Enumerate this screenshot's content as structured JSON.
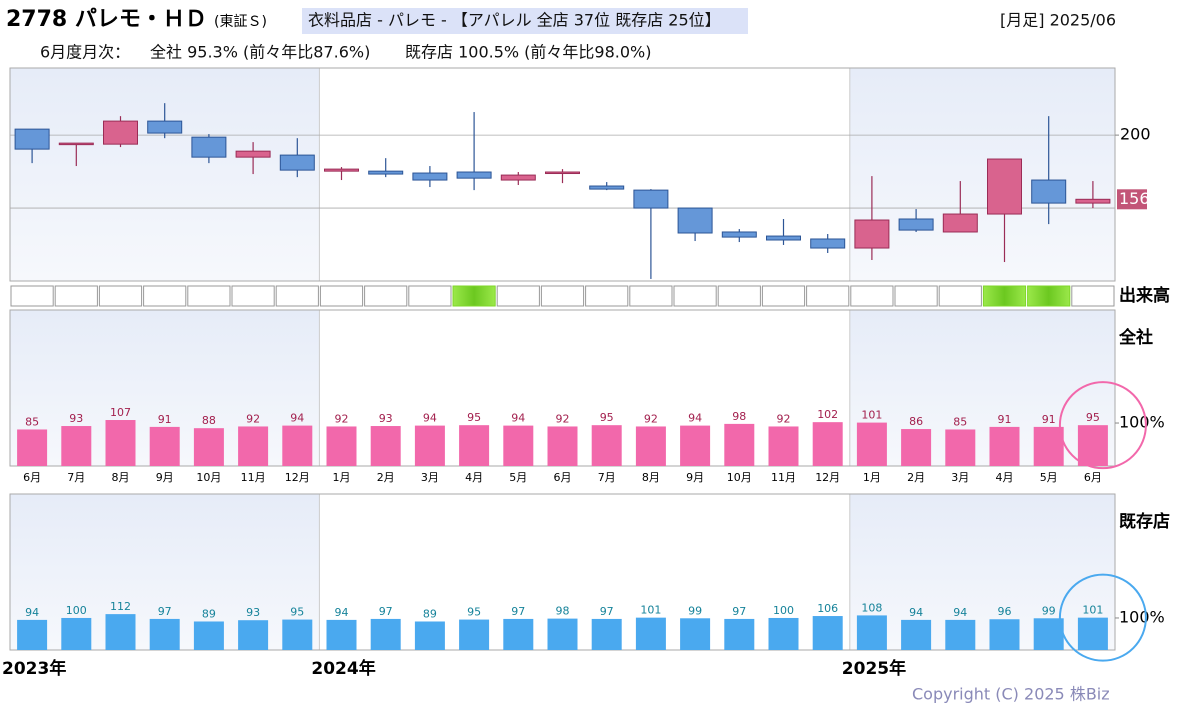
{
  "header": {
    "title": "2778 パレモ・ＨＤ",
    "market": "(東証Ｓ)",
    "category": "衣料品店 - パレモ - 【アパレル 全店 37位 既存店 25位】",
    "period": "[月足] 2025/06",
    "monthly_label": "6月度月次：",
    "all_stores": "全社 95.3% (前々年比87.6%)",
    "existing_stores": "既存店 100.5% (前々年比98.0%)"
  },
  "chart_data": [
    {
      "type": "candlestick",
      "open": [
        204.1,
        194.5,
        193.8,
        209.6,
        198.6,
        184.9,
        186.3,
        175.3,
        175.3,
        174.0,
        174.7,
        169.2,
        174.0,
        165.1,
        162.3,
        150.0,
        133.6,
        130.8,
        128.8,
        122.6,
        142.5,
        133.6,
        145.9,
        169.2,
        153.4
      ],
      "high": [
        204.1,
        194.5,
        213.0,
        221.9,
        200.7,
        195.2,
        197.9,
        178.1,
        184.2,
        178.8,
        215.8,
        174.7,
        176.7,
        167.8,
        163.0,
        150.0,
        135.6,
        142.5,
        132.2,
        171.9,
        149.3,
        168.5,
        183.6,
        213.0,
        168.5
      ],
      "low": [
        180.8,
        178.8,
        191.8,
        197.9,
        180.8,
        173.3,
        171.2,
        169.2,
        171.2,
        164.4,
        162.3,
        165.8,
        167.1,
        162.3,
        101.4,
        127.4,
        126.7,
        124.7,
        119.2,
        114.4,
        133.6,
        133.6,
        113.0,
        139.0,
        150.0
      ],
      "close": [
        190.4,
        194.5,
        209.6,
        201.4,
        184.9,
        189.0,
        176.0,
        176.7,
        173.3,
        169.2,
        170.5,
        172.6,
        174.7,
        163.0,
        150.0,
        132.9,
        130.1,
        128.1,
        122.6,
        141.8,
        134.9,
        145.9,
        183.6,
        153.4,
        156
      ],
      "up_color": "#d9638e",
      "down_color": "#6597d8",
      "ylim": [
        100,
        246
      ],
      "yticks": [
        200
      ],
      "grid_lines": [
        150,
        200
      ],
      "last_price": 156,
      "volume_label": "出来高",
      "volume_highlight": [
        false,
        false,
        false,
        false,
        false,
        false,
        false,
        false,
        false,
        false,
        true,
        false,
        false,
        false,
        false,
        false,
        false,
        false,
        false,
        false,
        false,
        false,
        true,
        true,
        false
      ],
      "highlight_color": "#7fd62a"
    },
    {
      "type": "bar",
      "label": "全社",
      "categories": [
        "6月",
        "7月",
        "8月",
        "9月",
        "10月",
        "11月",
        "12月",
        "1月",
        "2月",
        "3月",
        "4月",
        "5月",
        "6月",
        "7月",
        "8月",
        "9月",
        "10月",
        "11月",
        "12月",
        "1月",
        "2月",
        "3月",
        "4月",
        "5月",
        "6月"
      ],
      "values": [
        85,
        93,
        107,
        91,
        88,
        92,
        94,
        92,
        93,
        94,
        95,
        94,
        92,
        95,
        92,
        94,
        98,
        92,
        102,
        101,
        86,
        85,
        91,
        91,
        95
      ],
      "color": "#f268ab",
      "label_color": "#a3204e",
      "ylim": [
        0,
        363
      ],
      "yticks": [
        {
          "value": 100,
          "label": "100%"
        }
      ]
    },
    {
      "type": "bar",
      "label": "既存店",
      "values": [
        94,
        100,
        112,
        97,
        89,
        93,
        95,
        94,
        97,
        89,
        95,
        97,
        98,
        97,
        101,
        99,
        97,
        100,
        106,
        108,
        94,
        94,
        96,
        99,
        101
      ],
      "color": "#4aa9ef",
      "label_color": "#16839a",
      "ylim": [
        0,
        487
      ],
      "yticks": [
        {
          "value": 100,
          "label": "100%"
        }
      ]
    }
  ],
  "years": [
    {
      "label": "2023年",
      "start_index": 0
    },
    {
      "label": "2024年",
      "start_index": 7
    },
    {
      "label": "2025年",
      "start_index": 19
    }
  ],
  "copyright": "Copyright (C) 2025 株Biz"
}
